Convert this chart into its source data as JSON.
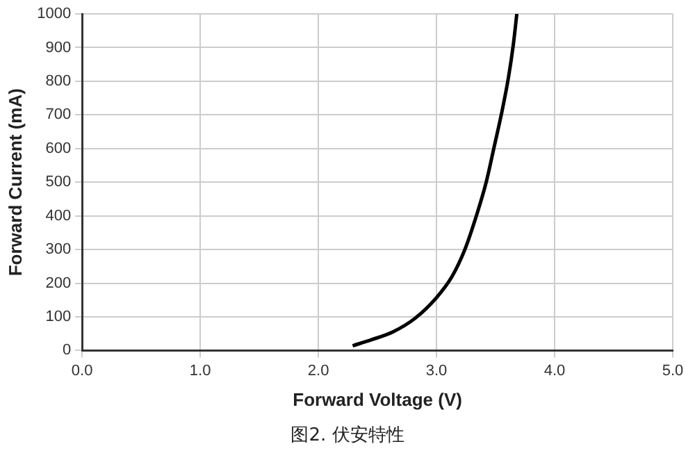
{
  "chart_data": {
    "type": "line",
    "xlabel": "Forward Voltage (V)",
    "ylabel": "Forward Current (mA)",
    "annotations": [
      "图2. 伏安特性"
    ],
    "x": [
      2.29,
      2.45,
      2.63,
      2.82,
      3.0,
      3.13,
      3.24,
      3.34,
      3.42,
      3.49,
      3.55,
      3.61,
      3.65,
      3.68
    ],
    "series": [
      {
        "color": "#000000",
        "values": [
          14,
          32,
          55,
          96,
          157,
          219,
          300,
          403,
          499,
          608,
          703,
          813,
          908,
          1000
        ]
      }
    ],
    "xlim": [
      0,
      5
    ],
    "xticks": [
      {
        "value": 0,
        "label": "0.0"
      },
      {
        "value": 1,
        "label": "1.0"
      },
      {
        "value": 2,
        "label": "2.0"
      },
      {
        "value": 3,
        "label": "3.0"
      },
      {
        "value": 4,
        "label": "4.0"
      },
      {
        "value": 5,
        "label": "5.0"
      }
    ],
    "ylim": [
      0,
      1000
    ],
    "yticks": [
      0,
      100,
      200,
      300,
      400,
      500,
      600,
      700,
      800,
      900,
      1000
    ],
    "grid": true,
    "legend": false,
    "marker": "none",
    "line_style": "solid"
  }
}
